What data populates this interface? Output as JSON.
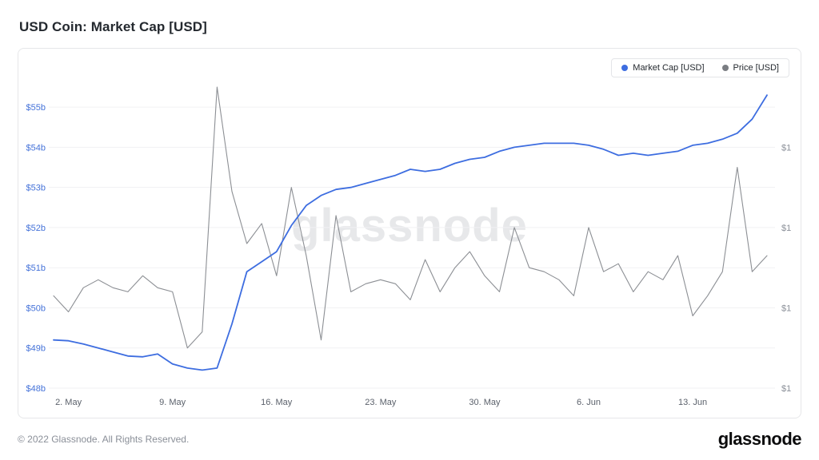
{
  "page": {
    "title": "USD Coin: Market Cap [USD]",
    "watermark": "glassnode",
    "footer_copyright": "© 2022 Glassnode. All Rights Reserved.",
    "brand_logo": "glassnode"
  },
  "legend": {
    "items": [
      {
        "label": "Market Cap [USD]",
        "color": "#3d6de0"
      },
      {
        "label": "Price [USD]",
        "color": "#7a7d82"
      }
    ]
  },
  "chart_data": {
    "type": "line",
    "title": "USD Coin: Market Cap [USD]",
    "grid": "horizontal",
    "legend_position": "top-right",
    "watermark": "glassnode",
    "x": [
      "1. May",
      "2. May",
      "3. May",
      "4. May",
      "5. May",
      "6. May",
      "7. May",
      "8. May",
      "9. May",
      "10. May",
      "11. May",
      "12. May",
      "13. May",
      "14. May",
      "15. May",
      "16. May",
      "17. May",
      "18. May",
      "19. May",
      "20. May",
      "21. May",
      "22. May",
      "23. May",
      "24. May",
      "25. May",
      "26. May",
      "27. May",
      "28. May",
      "29. May",
      "30. May",
      "31. May",
      "1. Jun",
      "2. Jun",
      "3. Jun",
      "4. Jun",
      "5. Jun",
      "6. Jun",
      "7. Jun",
      "8. Jun",
      "9. Jun",
      "10. Jun",
      "11. Jun",
      "12. Jun",
      "13. Jun",
      "14. Jun",
      "15. Jun",
      "16. Jun",
      "17. Jun",
      "18. Jun"
    ],
    "series": [
      {
        "name": "Market Cap [USD]",
        "axis": "left",
        "unit": "USD billions",
        "color": "#3d6de0",
        "values": [
          49.2,
          49.18,
          49.1,
          49.0,
          48.9,
          48.8,
          48.78,
          48.85,
          48.6,
          48.5,
          48.45,
          48.5,
          49.6,
          50.9,
          51.15,
          51.4,
          52.05,
          52.55,
          52.8,
          52.95,
          53.0,
          53.1,
          53.2,
          53.3,
          53.45,
          53.4,
          53.45,
          53.6,
          53.7,
          53.75,
          53.9,
          54.0,
          54.05,
          54.1,
          54.1,
          54.1,
          54.05,
          53.95,
          53.8,
          53.85,
          53.8,
          53.85,
          53.9,
          54.05,
          54.1,
          54.2,
          54.35,
          54.7,
          55.3
        ]
      },
      {
        "name": "Price [USD]",
        "axis": "right",
        "unit": "USD",
        "color": "#8c8f94",
        "values": [
          0.9998,
          0.9994,
          1.0,
          1.0002,
          1.0,
          0.9999,
          1.0003,
          1.0,
          0.9999,
          0.9985,
          0.9989,
          1.005,
          1.0024,
          1.0011,
          1.0016,
          1.0003,
          1.0025,
          1.0008,
          0.9987,
          1.0018,
          0.9999,
          1.0001,
          1.0002,
          1.0001,
          0.9997,
          1.0007,
          0.9999,
          1.0005,
          1.0009,
          1.0003,
          0.9999,
          1.0015,
          1.0005,
          1.0004,
          1.0002,
          0.9998,
          1.0015,
          1.0004,
          1.0006,
          0.9999,
          1.0004,
          1.0002,
          1.0008,
          0.9993,
          0.9998,
          1.0004,
          1.003,
          1.0004,
          1.0008
        ]
      }
    ],
    "ylim_left": [
      48,
      55.5
    ],
    "ylim_right": [
      0.9975,
      1.005
    ],
    "left_ticks": [
      {
        "label": "$55b",
        "value": 55
      },
      {
        "label": "$54b",
        "value": 54
      },
      {
        "label": "$53b",
        "value": 53
      },
      {
        "label": "$52b",
        "value": 52
      },
      {
        "label": "$51b",
        "value": 51
      },
      {
        "label": "$50b",
        "value": 50
      },
      {
        "label": "$49b",
        "value": 49
      },
      {
        "label": "$48b",
        "value": 48
      }
    ],
    "right_ticks": [
      {
        "label": "$1",
        "value": 54
      },
      {
        "label": "$1",
        "value": 52
      },
      {
        "label": "$1",
        "value": 50
      },
      {
        "label": "$1",
        "value": 48
      }
    ],
    "x_ticks": [
      {
        "label": "2. May",
        "index": 1
      },
      {
        "label": "9. May",
        "index": 8
      },
      {
        "label": "16. May",
        "index": 15
      },
      {
        "label": "23. May",
        "index": 22
      },
      {
        "label": "30. May",
        "index": 29
      },
      {
        "label": "6. Jun",
        "index": 36
      },
      {
        "label": "13. Jun",
        "index": 43
      }
    ]
  }
}
